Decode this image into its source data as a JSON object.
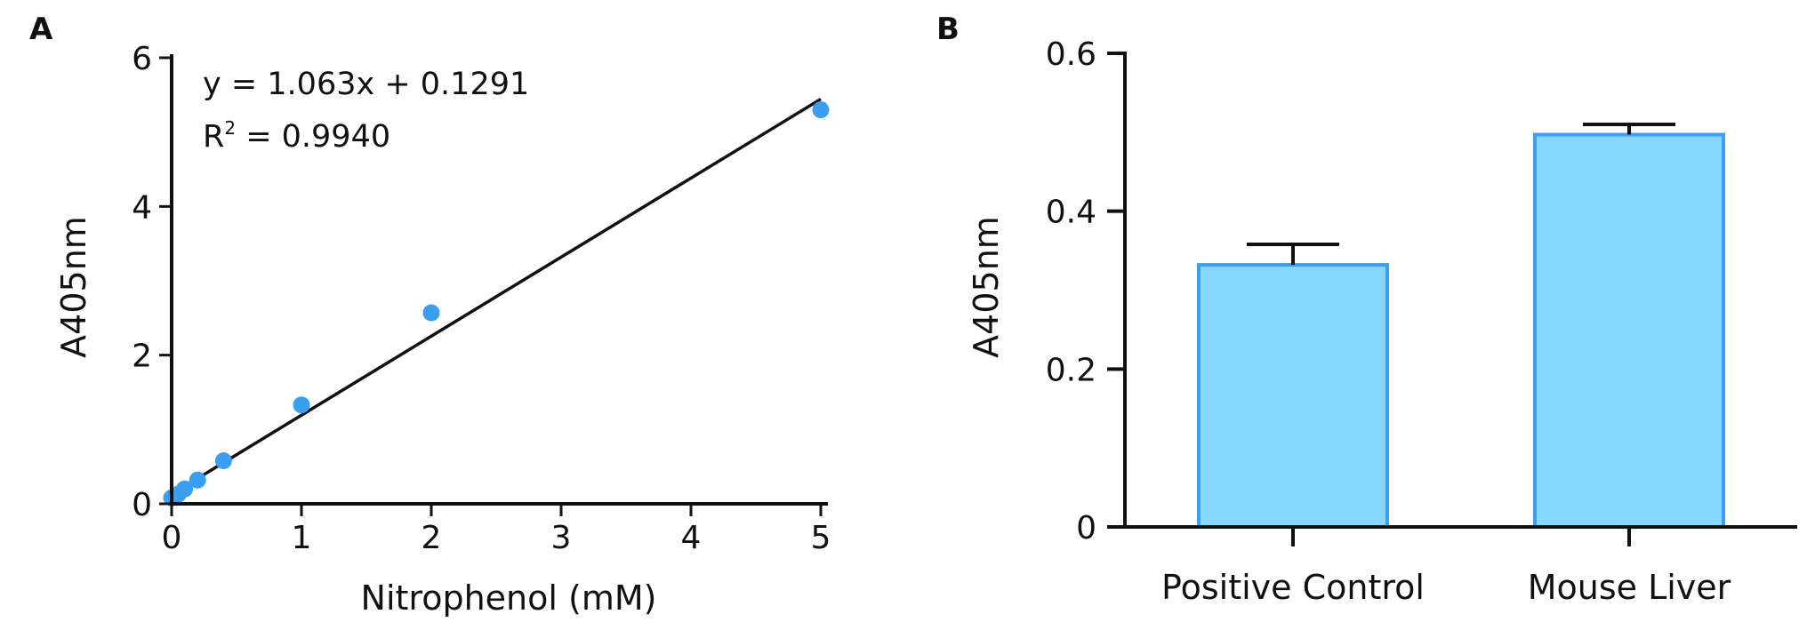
{
  "panels": {
    "a_label": "A",
    "b_label": "B"
  },
  "colors": {
    "point": "#3a9ff0",
    "bar_fill": "#87d6fb",
    "bar_stroke": "#3a9ff0",
    "axis": "#111111"
  },
  "chart_data": [
    {
      "type": "scatter",
      "panel": "A",
      "xlabel": "Nitrophenol (mM)",
      "ylabel": "A405nm",
      "xlim": [
        0,
        5
      ],
      "ylim": [
        0,
        6
      ],
      "xticks": [
        0,
        1,
        2,
        3,
        4,
        5
      ],
      "yticks": [
        0,
        2,
        4,
        6
      ],
      "points": [
        {
          "x": 0,
          "y": 0.08
        },
        {
          "x": 0.025,
          "y": 0.1
        },
        {
          "x": 0.05,
          "y": 0.13
        },
        {
          "x": 0.1,
          "y": 0.2
        },
        {
          "x": 0.2,
          "y": 0.32
        },
        {
          "x": 0.4,
          "y": 0.58
        },
        {
          "x": 1,
          "y": 1.33
        },
        {
          "x": 2,
          "y": 2.57
        },
        {
          "x": 5,
          "y": 5.3
        }
      ],
      "fit": {
        "slope": 1.063,
        "intercept": 0.1291,
        "x_range": [
          0,
          5
        ]
      },
      "annotations": {
        "equation": "y = 1.063x + 0.1291",
        "r2_prefix": "R",
        "r2_sup": "2",
        "r2_value": " = 0.9940"
      }
    },
    {
      "type": "bar",
      "panel": "B",
      "ylabel": "A405nm",
      "ylim": [
        0,
        0.6
      ],
      "yticks": [
        0,
        0.2,
        0.4,
        0.6
      ],
      "ytick_labels": [
        "0",
        "0.2",
        "0.4",
        "0.6"
      ],
      "categories": [
        "Positive Control",
        "Mouse Liver"
      ],
      "values": [
        0.332,
        0.497
      ],
      "errors": [
        0.026,
        0.013
      ]
    }
  ]
}
